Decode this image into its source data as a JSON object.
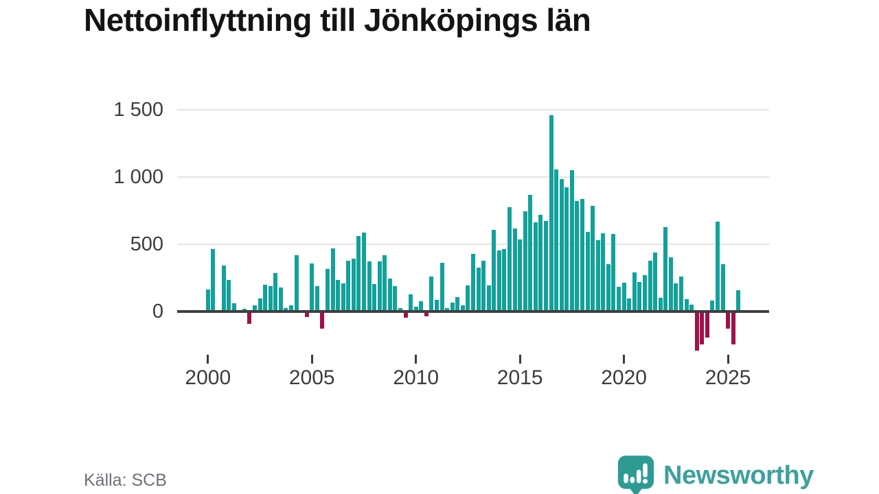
{
  "title": "Nettoinflyttning till Jönköpings län",
  "source": "Källa: SCB",
  "brand": {
    "name": "Newsworthy",
    "wordmark_color": "#3ba19c",
    "icon_color": "#2d9b94",
    "icon": "newsworthy-bubble-chart-icon"
  },
  "chart_data": {
    "type": "bar",
    "title": "Nettoinflyttning till Jönköpings län",
    "xlabel": "",
    "ylabel": "",
    "period": "quarterly",
    "start": "2000Q1",
    "end": "2025Q3",
    "grid": "horizontal",
    "legend": "none",
    "ylim": [
      -320,
      1600
    ],
    "y_ticks": [
      {
        "value": 0,
        "label": "0"
      },
      {
        "value": 500,
        "label": "500"
      },
      {
        "value": 1000,
        "label": "1 000"
      },
      {
        "value": 1500,
        "label": "1 500"
      }
    ],
    "x_tick_years": [
      2000,
      2005,
      2010,
      2015,
      2020,
      2025
    ],
    "colors": {
      "positive": "#12a19b",
      "negative": "#a11048"
    },
    "values": [
      163,
      466,
      5,
      343,
      237,
      60,
      5,
      18,
      -92,
      48,
      95,
      200,
      189,
      286,
      180,
      23,
      44,
      420,
      5,
      -40,
      355,
      190,
      -125,
      314,
      470,
      235,
      210,
      376,
      395,
      560,
      585,
      370,
      206,
      373,
      420,
      246,
      190,
      26,
      -45,
      128,
      34,
      78,
      -36,
      262,
      87,
      360,
      26,
      68,
      107,
      44,
      195,
      428,
      326,
      380,
      193,
      609,
      452,
      464,
      777,
      616,
      534,
      745,
      869,
      665,
      717,
      671,
      1460,
      1054,
      983,
      924,
      1051,
      820,
      836,
      593,
      788,
      533,
      582,
      351,
      577,
      185,
      214,
      95,
      292,
      220,
      272,
      377,
      441,
      102,
      630,
      402,
      211,
      262,
      94,
      50,
      -289,
      -247,
      -193,
      82,
      667,
      351,
      -129,
      -247,
      158
    ]
  }
}
